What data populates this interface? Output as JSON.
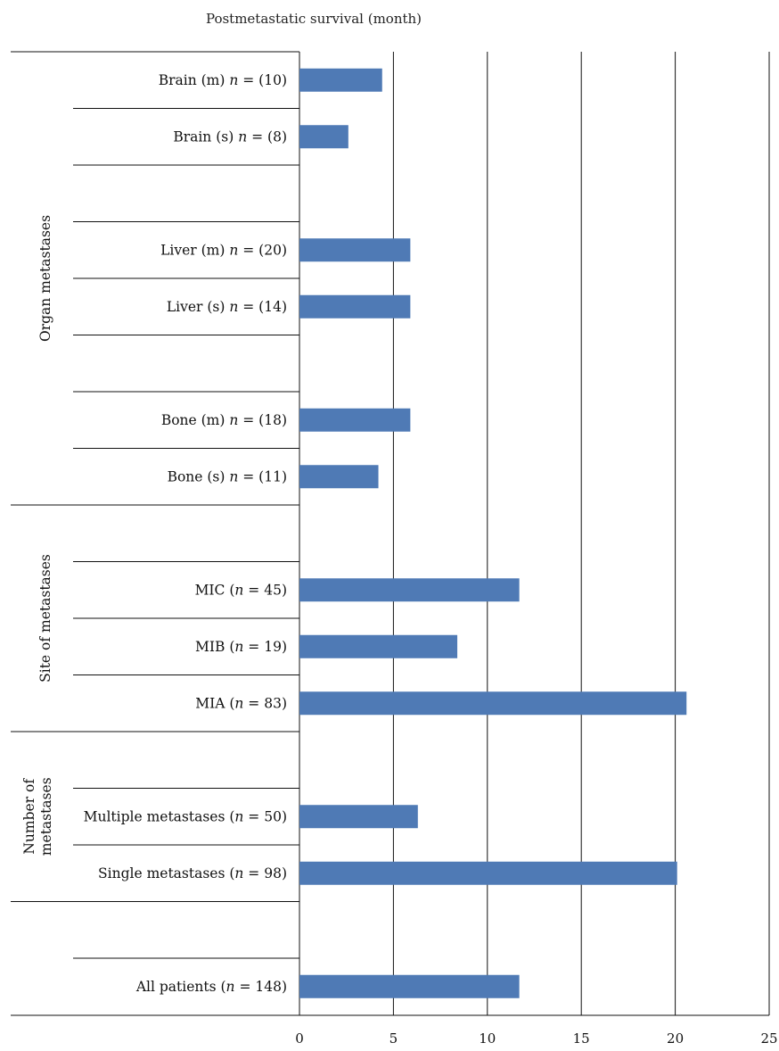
{
  "chart_data": {
    "type": "bar",
    "orientation": "horizontal",
    "title": "Postmetastatic survival (month)",
    "xlim": [
      0,
      25
    ],
    "xticks": [
      0,
      5,
      10,
      15,
      20,
      25
    ],
    "grid": true,
    "bar_color": "#4f7ab5",
    "groups": [
      {
        "label": "Organ metastases",
        "categories": [
          {
            "pre": "Brain (m) ",
            "n": "n",
            "post": " = (10)",
            "value": 4.4
          },
          {
            "pre": "Brain (s) ",
            "n": "n",
            "post": " = (8)",
            "value": 2.6
          },
          {
            "pre": "Liver (m)  ",
            "n": "n",
            "post": " = (20)",
            "value": 5.9
          },
          {
            "pre": "Liver (s)  ",
            "n": "n",
            "post": " = (14)",
            "value": 5.9
          },
          {
            "pre": "Bone (m) ",
            "n": "n",
            "post": " = (18)",
            "value": 5.9
          },
          {
            "pre": "Bone (s) ",
            "n": "n",
            "post": " = (11)",
            "value": 4.2
          }
        ]
      },
      {
        "label": "Site of metastases",
        "categories": [
          {
            "pre": "MIC (",
            "n": "n",
            "post": " = 45)",
            "value": 11.7
          },
          {
            "pre": "MIB (",
            "n": "n",
            "post": " = 19)",
            "value": 8.4
          },
          {
            "pre": "MIA (",
            "n": "n",
            "post": " = 83)",
            "value": 20.6
          }
        ]
      },
      {
        "label_lines": [
          "Number of",
          "metastases"
        ],
        "categories": [
          {
            "pre": "Multiple metastases (",
            "n": "n",
            "post": " = 50)",
            "value": 6.3
          },
          {
            "pre": "Single metastases (",
            "n": "n",
            "post": " = 98)",
            "value": 20.1
          }
        ]
      },
      {
        "label": "",
        "categories": [
          {
            "pre": "All patients (",
            "n": "n",
            "post": " = 148)",
            "value": 11.7
          }
        ]
      }
    ]
  }
}
